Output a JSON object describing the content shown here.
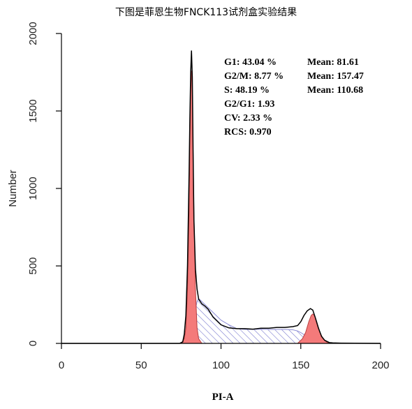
{
  "chart_data": {
    "type": "area",
    "title": "下图是菲恩生物FNCK113试剂盒实验结果",
    "xlabel": "PI-A",
    "ylabel": "Number",
    "xlim": [
      0,
      200
    ],
    "ylim": [
      0,
      2000
    ],
    "x_ticks": [
      0,
      50,
      100,
      150,
      200
    ],
    "y_ticks": [
      0,
      500,
      1000,
      1500,
      2000
    ],
    "x_tick_labels": [
      "0",
      "50",
      "100",
      "150",
      "200"
    ],
    "y_tick_labels": [
      "0",
      "500",
      "1000",
      "1500",
      "2000"
    ],
    "grid": false,
    "stats": [
      [
        "G1: 43.04 %",
        "Mean: 81.61"
      ],
      [
        "G2/M: 8.77 %",
        "Mean: 157.47"
      ],
      [
        "S: 48.19 %",
        "Mean: 110.68"
      ],
      [
        "G2/G1: 1.93",
        ""
      ],
      [
        "CV: 2.33 %",
        ""
      ],
      [
        "RCS: 0.970",
        ""
      ]
    ],
    "series": [
      {
        "role": "histogram",
        "x": [
          0,
          74,
          76,
          77,
          78,
          79,
          80,
          80.5,
          81,
          81.5,
          82,
          82.5,
          83,
          84,
          85,
          86,
          88,
          90,
          92,
          95,
          100,
          105,
          110,
          115,
          120,
          125,
          130,
          135,
          140,
          145,
          148,
          150,
          152,
          154,
          156,
          157.5,
          159,
          161,
          163,
          165,
          168,
          170,
          175,
          200
        ],
        "y": [
          0,
          0,
          10,
          60,
          180,
          500,
          1100,
          1450,
          1750,
          1890,
          1720,
          1250,
          800,
          480,
          350,
          285,
          255,
          240,
          220,
          170,
          120,
          100,
          95,
          95,
          92,
          98,
          98,
          103,
          103,
          108,
          115,
          140,
          180,
          210,
          225,
          215,
          170,
          100,
          45,
          20,
          5,
          3,
          2,
          0
        ]
      },
      {
        "role": "G1 fit",
        "color": "#f47a7a",
        "x": [
          0,
          75,
          77,
          78,
          79,
          80,
          80.5,
          81,
          81.5,
          82,
          82.5,
          83,
          84,
          85,
          86,
          88,
          200
        ],
        "y": [
          0,
          0,
          30,
          100,
          350,
          850,
          1300,
          1620,
          1760,
          1650,
          1250,
          850,
          350,
          100,
          30,
          0,
          0
        ]
      },
      {
        "role": "S-phase fit",
        "color": "#8c8cd6",
        "x": [
          0,
          77,
          80,
          83,
          85,
          86,
          88,
          90,
          95,
          100,
          105,
          110,
          115,
          120,
          125,
          130,
          135,
          140,
          145,
          148,
          150,
          153,
          155,
          158,
          160,
          200
        ],
        "y": [
          0,
          0,
          40,
          170,
          270,
          290,
          270,
          250,
          200,
          150,
          120,
          95,
          90,
          90,
          92,
          90,
          90,
          90,
          88,
          80,
          70,
          50,
          30,
          5,
          0,
          0
        ]
      },
      {
        "role": "G2/M fit",
        "color": "#f47a7a",
        "x": [
          0,
          148,
          151,
          153,
          155,
          156.5,
          157.5,
          158.5,
          160,
          162,
          164,
          166,
          168,
          200
        ],
        "y": [
          0,
          0,
          30,
          70,
          140,
          180,
          190,
          180,
          140,
          70,
          30,
          10,
          0,
          0
        ]
      }
    ]
  }
}
